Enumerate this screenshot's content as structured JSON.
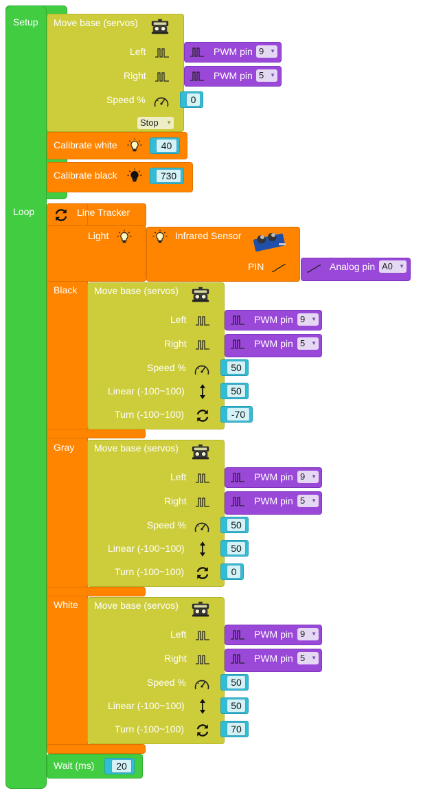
{
  "setup": {
    "label": "Setup",
    "move_base": {
      "title": "Move base (servos)",
      "left_label": "Left",
      "right_label": "Right",
      "speed_label": "Speed %",
      "left_pwm_label": "PWM pin",
      "left_pwm_value": "9",
      "right_pwm_label": "PWM pin",
      "right_pwm_value": "5",
      "speed_value": "0",
      "mode_value": "Stop"
    },
    "calibrate_white": {
      "label": "Calibrate white",
      "value": "40"
    },
    "calibrate_black": {
      "label": "Calibrate black",
      "value": "730"
    }
  },
  "loop": {
    "label": "Loop",
    "line_tracker": {
      "title": "Line Tracker",
      "light_label": "Light",
      "sensor_label": "Infrared Sensor",
      "pin_label": "PIN",
      "analog_label": "Analog pin",
      "analog_value": "A0",
      "black_label": "Black",
      "gray_label": "Gray",
      "white_label": "White"
    },
    "black_move": {
      "title": "Move base (servos)",
      "left_label": "Left",
      "right_label": "Right",
      "left_pwm_label": "PWM pin",
      "left_pwm_value": "9",
      "right_pwm_label": "PWM pin",
      "right_pwm_value": "5",
      "speed_label": "Speed %",
      "speed_value": "50",
      "linear_label": "Linear (-100~100)",
      "linear_value": "50",
      "turn_label": "Turn (-100~100)",
      "turn_value": "-70"
    },
    "gray_move": {
      "title": "Move base (servos)",
      "left_label": "Left",
      "right_label": "Right",
      "left_pwm_label": "PWM pin",
      "left_pwm_value": "9",
      "right_pwm_label": "PWM pin",
      "right_pwm_value": "5",
      "speed_label": "Speed %",
      "speed_value": "50",
      "linear_label": "Linear (-100~100)",
      "linear_value": "50",
      "turn_label": "Turn (-100~100)",
      "turn_value": "0"
    },
    "white_move": {
      "title": "Move base (servos)",
      "left_label": "Left",
      "right_label": "Right",
      "left_pwm_label": "PWM pin",
      "left_pwm_value": "9",
      "right_pwm_label": "PWM pin",
      "right_pwm_value": "5",
      "speed_label": "Speed %",
      "speed_value": "50",
      "linear_label": "Linear (-100~100)",
      "linear_value": "50",
      "turn_label": "Turn (-100~100)",
      "turn_value": "70"
    },
    "wait": {
      "label": "Wait (ms)",
      "value": "20"
    }
  },
  "colors": {
    "setup_loop": "#42cc42",
    "move_base": "#cdcd3c",
    "calibrate_and_tracker": "#ff8500",
    "pwm_pin": "#9a48d8",
    "number": "#32bdd6"
  },
  "icons": [
    "robot-icon",
    "pwm-wave-icon",
    "speedometer-icon",
    "bulb-icon",
    "refresh-icon",
    "updown-arrow-icon",
    "infrared-sensor-icon",
    "analog-wave-icon"
  ]
}
